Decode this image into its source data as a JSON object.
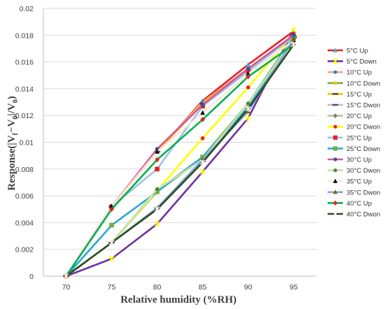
{
  "chart_data": {
    "type": "line",
    "xlabel": "Relative humidity (%RH)",
    "ylabel": "Response(|V",
    "ylabel_sub1": "f",
    "ylabel_mid": "−V",
    "ylabel_sub2": "0",
    "ylabel_end": "|/V",
    "ylabel_sub3": "0",
    "ylabel_close": ")",
    "x": [
      70,
      75,
      80,
      85,
      90,
      95
    ],
    "xlim": [
      67.5,
      97.5
    ],
    "ylim": [
      0,
      0.02
    ],
    "y_ticks": [
      "0",
      "0.002",
      "0.004",
      "0.006",
      "0.008",
      "0.01",
      "0.012",
      "0.014",
      "0.016",
      "0.018",
      "0.02"
    ],
    "x_ticks": [
      "70",
      "75",
      "80",
      "85",
      "90",
      "95"
    ],
    "grid": true,
    "legend_position": "right",
    "series": [
      {
        "name": "5°C Up",
        "color": "#e8211e",
        "marker": "triangle",
        "marker_color": "#44a8d8",
        "values": [
          0,
          0.0052,
          0.0093,
          0.0131,
          0.0158,
          0.0183
        ]
      },
      {
        "name": "5°C Down",
        "color": "#7030a0",
        "marker": "star",
        "marker_color": "#ffff00",
        "values": [
          0,
          0.0013,
          0.0039,
          0.0078,
          0.0118,
          0.0184
        ]
      },
      {
        "name": "10°C Up",
        "color": "#f4a582",
        "marker": "circle",
        "marker_color": "#4472c4",
        "values": [
          0,
          0.0052,
          0.0094,
          0.013,
          0.0155,
          0.018
        ]
      },
      {
        "name": "10°C Down",
        "color": "#70ad47",
        "marker": "circle",
        "marker_color": "#ffc000",
        "values": [
          0,
          0.0025,
          0.0064,
          0.0089,
          0.0129,
          0.0179
        ]
      },
      {
        "name": "15°C  Up",
        "color": "#ffc000",
        "marker": "dash",
        "marker_color": "#404040",
        "values": [
          0,
          0.0052,
          0.0093,
          0.0129,
          0.0154,
          0.0179
        ]
      },
      {
        "name": "15°C Dwon",
        "color": "#bfbfbf",
        "marker": "dash",
        "marker_color": "#7030a0",
        "values": [
          0,
          0.0025,
          0.0051,
          0.0086,
          0.0127,
          0.0178
        ]
      },
      {
        "name": "20°C Up",
        "color": "#a9d08e",
        "marker": "diamond",
        "marker_color": "#7f7f7f",
        "values": [
          0,
          0.0025,
          0.0063,
          0.0088,
          0.0128,
          0.0178
        ]
      },
      {
        "name": "20°C Dwon",
        "color": "#ffff00",
        "marker": "circle",
        "marker_color": "#e8211e",
        "values": [
          0,
          0.0025,
          0.0064,
          0.0103,
          0.0141,
          0.0181
        ]
      },
      {
        "name": "25°C Up",
        "color": "#9dc3e6",
        "marker": "square",
        "marker_color": "#e8211e",
        "values": [
          0,
          0.0052,
          0.008,
          0.0127,
          0.0153,
          0.0179
        ]
      },
      {
        "name": "25°C Down",
        "color": "#2aa8d8",
        "marker": "square",
        "marker_color": "#70ad47",
        "values": [
          0,
          0.0038,
          0.0063,
          0.0089,
          0.0126,
          0.0178
        ]
      },
      {
        "name": "30°C Up",
        "color": "#d6569a",
        "marker": "circle",
        "marker_color": "#2f5597",
        "values": [
          0,
          0.0052,
          0.0095,
          0.0128,
          0.0155,
          0.018
        ]
      },
      {
        "name": "30°C Dwon",
        "color": "#c5e0b4",
        "marker": "circle",
        "marker_color": "#548235",
        "values": [
          0,
          0.0025,
          0.0065,
          0.0087,
          0.0129,
          0.0177
        ]
      },
      {
        "name": "35°C Up",
        "color": "#fbe5d6",
        "marker": "triangle",
        "marker_color": "#000000",
        "values": [
          0,
          0.0052,
          0.0093,
          0.0122,
          0.0151,
          0.0176
        ]
      },
      {
        "name": "35°C Dwon",
        "color": "#7fa7d8",
        "marker": "triangle",
        "marker_color": "#7f6000",
        "values": [
          0,
          0.0025,
          0.0051,
          0.0087,
          0.0123,
          0.0177
        ]
      },
      {
        "name": "40°C Up",
        "color": "#00b050",
        "marker": "diamond",
        "marker_color": "#e8211e",
        "values": [
          0,
          0.005,
          0.0087,
          0.0117,
          0.0149,
          0.0173
        ]
      },
      {
        "name": "40°C Dwon",
        "color": "#2e4a1e",
        "marker": "star",
        "marker_color": "#ffffff",
        "values": [
          0,
          0.0025,
          0.005,
          0.0085,
          0.0125,
          0.0173
        ]
      }
    ]
  }
}
